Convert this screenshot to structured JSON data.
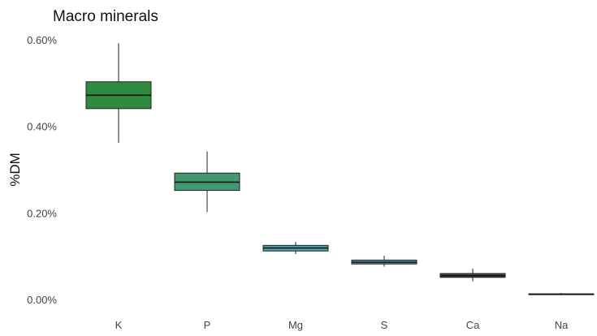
{
  "chart_data": {
    "type": "box",
    "title": "Macro minerals",
    "xlabel": "",
    "ylabel": "%DM",
    "ylim": [
      0,
      0.6
    ],
    "y_ticks": [
      0,
      0.2,
      0.4,
      0.6
    ],
    "y_tick_labels": [
      "0.00%",
      "0.20%",
      "0.40%",
      "0.60%"
    ],
    "grid": false,
    "legend": "none",
    "categories": [
      "K",
      "P",
      "Mg",
      "S",
      "Ca",
      "Na"
    ],
    "boxes": [
      {
        "category": "K",
        "min": 0.362,
        "q1": 0.441,
        "median": 0.472,
        "q3": 0.503,
        "max": 0.592,
        "color": "#2e8b3e"
      },
      {
        "category": "P",
        "min": 0.202,
        "q1": 0.252,
        "median": 0.271,
        "q3": 0.292,
        "max": 0.342,
        "color": "#3f9a72"
      },
      {
        "category": "Mg",
        "min": 0.105,
        "q1": 0.112,
        "median": 0.119,
        "q3": 0.125,
        "max": 0.133,
        "color": "#4aa6b0"
      },
      {
        "category": "S",
        "min": 0.076,
        "q1": 0.082,
        "median": 0.086,
        "q3": 0.091,
        "max": 0.101,
        "color": "#5b8dab"
      },
      {
        "category": "Ca",
        "min": 0.042,
        "q1": 0.051,
        "median": 0.055,
        "q3": 0.06,
        "max": 0.071,
        "color": "#3f4f58"
      },
      {
        "category": "Na",
        "min": 0.01,
        "q1": 0.012,
        "median": 0.012,
        "q3": 0.013,
        "max": 0.015,
        "color": "#4a4a4a"
      }
    ]
  }
}
